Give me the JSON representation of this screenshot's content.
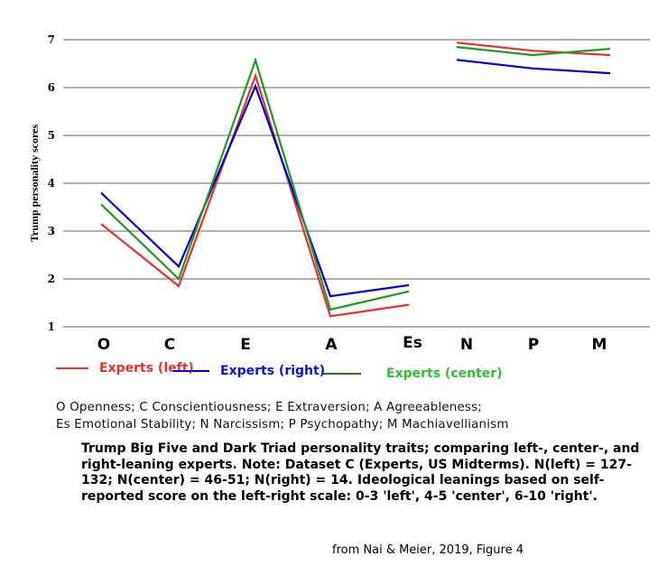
{
  "chart_data": {
    "type": "line",
    "ylabel": "Trump personality scores",
    "xlabel": "",
    "ylim": [
      1,
      7
    ],
    "yticks": [
      1,
      2,
      3,
      4,
      5,
      6,
      7
    ],
    "grid": true,
    "categories": [
      "O",
      "C",
      "E",
      "A",
      "Es",
      "N",
      "P",
      "M"
    ],
    "segments": [
      [
        0,
        4
      ],
      [
        5,
        7
      ]
    ],
    "series": [
      {
        "name": "Experts (left)",
        "color": "#e8302f",
        "values": [
          3.15,
          1.85,
          6.25,
          1.22,
          1.46,
          6.94,
          6.77,
          6.68
        ]
      },
      {
        "name": "Experts (right)",
        "color": "#0000cc",
        "values": [
          3.8,
          2.26,
          6.03,
          1.64,
          1.87,
          6.58,
          6.4,
          6.3
        ]
      },
      {
        "name": "Experts (center)",
        "color": "#1f9a1f",
        "values": [
          3.56,
          2.0,
          6.57,
          1.36,
          1.74,
          6.85,
          6.68,
          6.81
        ]
      }
    ],
    "legend_placement": "bottom"
  },
  "legend_text_colors": [
    "#e8302f",
    "#1010e0",
    "#2fbf2f"
  ],
  "abbreviations": [
    "O Openness; C Conscientiousness; E Extraversion; A Agreeableness;",
    "Es Emotional Stability; N Narcissism; P Psychopathy; M Machiavellianism"
  ],
  "caption": "Trump Big Five and Dark Triad personality traits; comparing left-, center-, and right-leaning experts. Note: Dataset C (Experts, US Midterms). N(left) = 127-132; N(center) = 46-51; N(right) = 14. Ideological leanings based on self-reported score on the left-right scale: 0-3 'left', 4-5 'center', 6-10 'right'.",
  "source": "from Nai & Meier, 2019, Figure 4"
}
